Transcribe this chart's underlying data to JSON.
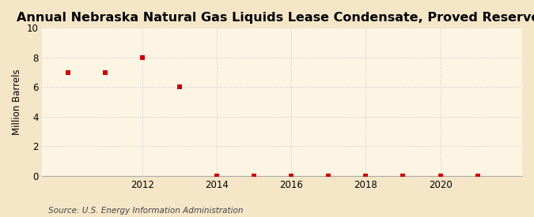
{
  "title": "Annual Nebraska Natural Gas Liquids Lease Condensate, Proved Reserves",
  "ylabel": "Million Barrels",
  "source": "Source: U.S. Energy Information Administration",
  "background_color": "#f5e6c8",
  "plot_background_color": "#fdf5e4",
  "years": [
    2010,
    2011,
    2012,
    2013,
    2014,
    2015,
    2016,
    2017,
    2018,
    2019,
    2020,
    2021
  ],
  "values": [
    7.0,
    7.0,
    8.0,
    6.0,
    0.02,
    0.02,
    0.02,
    0.02,
    0.02,
    0.02,
    0.02,
    0.02
  ],
  "marker_color": "#cc0000",
  "marker_size": 4,
  "ylim": [
    0,
    10
  ],
  "yticks": [
    0,
    2,
    4,
    6,
    8,
    10
  ],
  "xlim": [
    2009.3,
    2022.2
  ],
  "xticks": [
    2012,
    2014,
    2016,
    2018,
    2020
  ],
  "grid_color": "#cccccc",
  "title_fontsize": 11.5,
  "label_fontsize": 8.5,
  "tick_fontsize": 8.5,
  "source_fontsize": 7.5
}
